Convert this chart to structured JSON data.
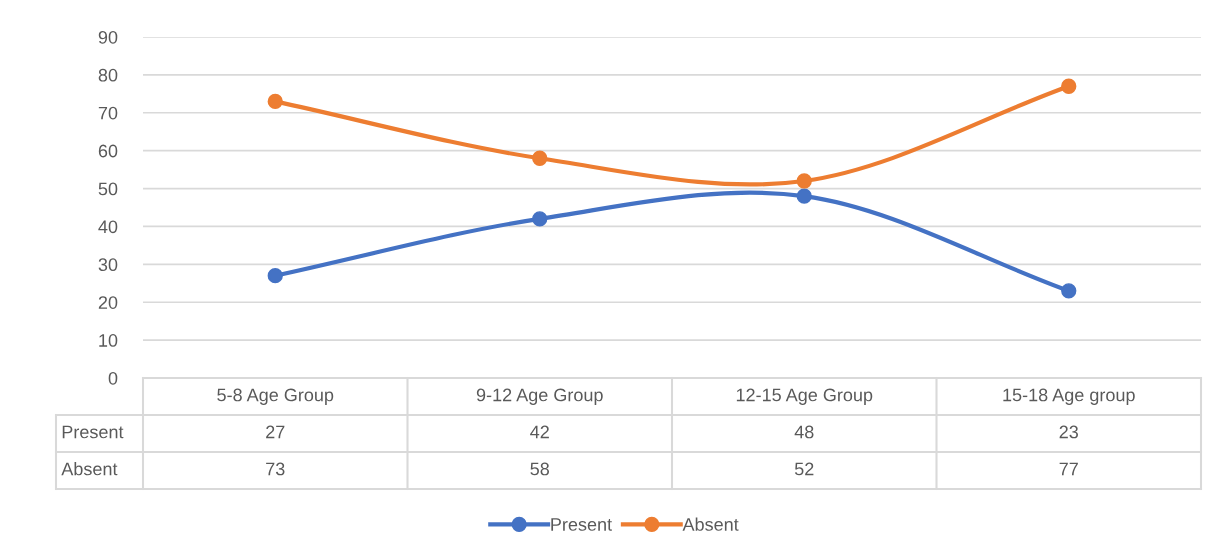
{
  "chart_data": {
    "type": "line",
    "categories": [
      "5-8 Age Group",
      "9-12 Age Group",
      "12-15 Age Group",
      "15-18 Age group"
    ],
    "series": [
      {
        "name": "Present",
        "color": "#4472c4",
        "values": [
          27,
          42,
          48,
          23
        ]
      },
      {
        "name": "Absent",
        "color": "#ed7d31",
        "values": [
          73,
          58,
          52,
          77
        ]
      }
    ],
    "ylim": [
      0,
      90
    ],
    "yticks": [
      0,
      10,
      20,
      30,
      40,
      50,
      60,
      70,
      80,
      90
    ],
    "grid": "y",
    "legend": "bottom",
    "marker": "circle",
    "line_style": "solid",
    "data_labels": true
  }
}
